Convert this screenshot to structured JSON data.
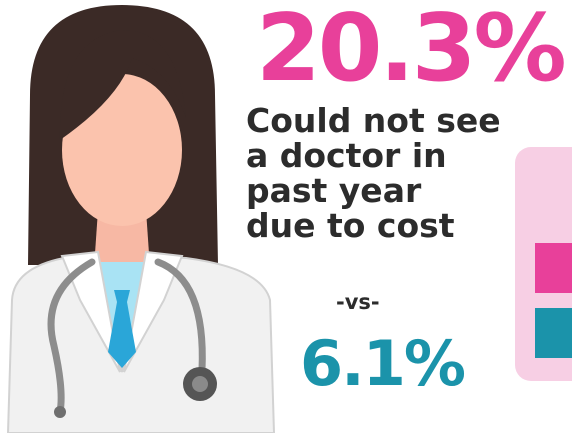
{
  "headline_stat": "20.3%",
  "caption_lines": [
    "Could not see",
    "a doctor in",
    "past year",
    "due to cost"
  ],
  "separator": "-vs-",
  "comparison_stat": "6.1%",
  "colors": {
    "accent_pink": "#e8409a",
    "accent_teal": "#1b93aa",
    "legend_background": "#f7cfe4",
    "text_dark": "#2c2c2c"
  },
  "icons": {
    "illustration": "doctor-with-stethoscope-icon"
  }
}
